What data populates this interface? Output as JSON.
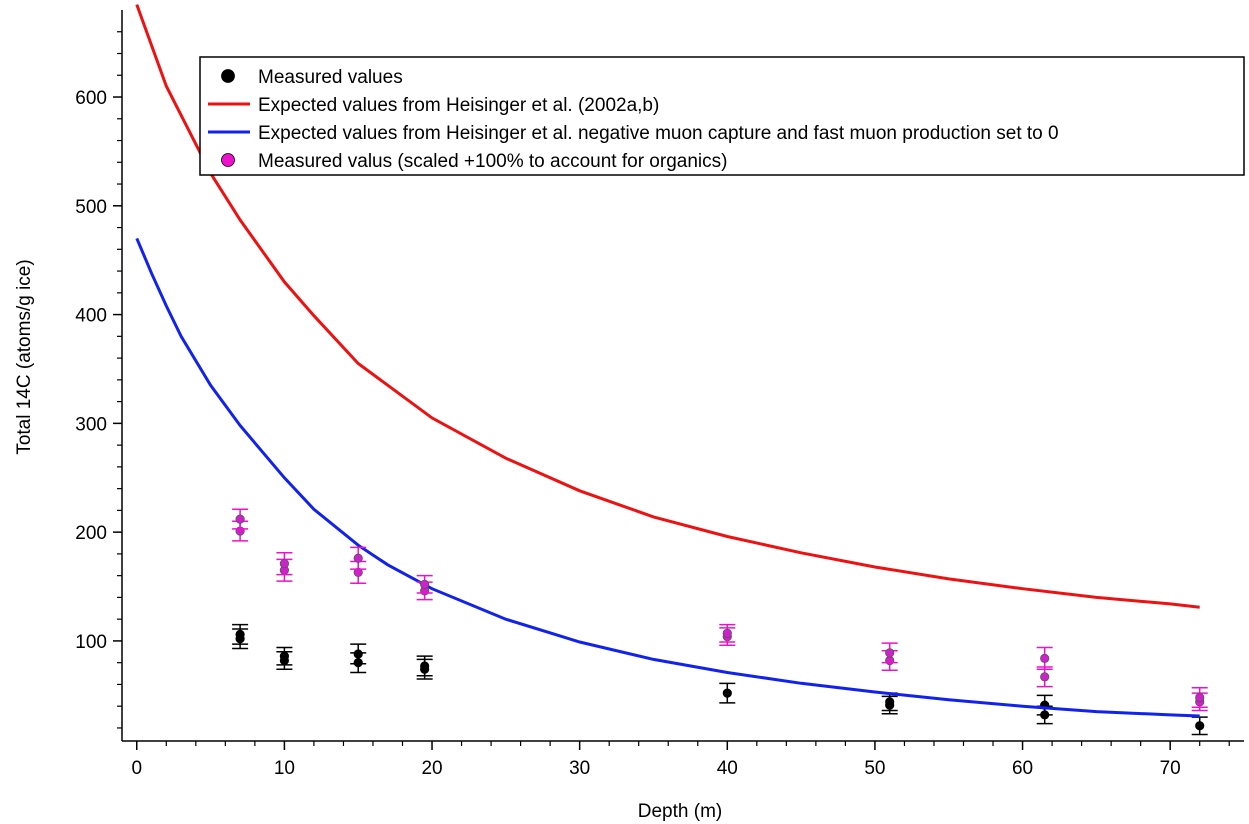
{
  "chart_data": {
    "type": "scatter",
    "xlabel": "Depth (m)",
    "ylabel": "Total 14C (atoms/g ice)",
    "xlim": [
      -1,
      75
    ],
    "ylim": [
      8,
      680
    ],
    "x_ticks": [
      0,
      10,
      20,
      30,
      40,
      50,
      60,
      70
    ],
    "y_ticks": [
      100,
      200,
      300,
      400,
      500,
      600
    ],
    "grid": false,
    "legend_position": "top-right",
    "colors": {
      "measured": "#000000",
      "heisinger": "#ee1111",
      "heisinger_zero": "#1122ee",
      "scaled": "#ee11cc"
    },
    "series": [
      {
        "key": "measured",
        "kind": "points",
        "name": "Measured values",
        "points": [
          {
            "x": 7,
            "y": 102,
            "err": 9
          },
          {
            "x": 7,
            "y": 106,
            "err": 9
          },
          {
            "x": 10,
            "y": 82,
            "err": 8
          },
          {
            "x": 10,
            "y": 86,
            "err": 8
          },
          {
            "x": 15,
            "y": 80,
            "err": 9
          },
          {
            "x": 15,
            "y": 88,
            "err": 9
          },
          {
            "x": 19.5,
            "y": 74,
            "err": 9
          },
          {
            "x": 19.5,
            "y": 77,
            "err": 9
          },
          {
            "x": 40,
            "y": 52,
            "err": 9
          },
          {
            "x": 51,
            "y": 41,
            "err": 8
          },
          {
            "x": 51,
            "y": 44,
            "err": 8
          },
          {
            "x": 61.5,
            "y": 32,
            "err": 8
          },
          {
            "x": 61.5,
            "y": 41,
            "err": 9
          },
          {
            "x": 72,
            "y": 22,
            "err": 8
          }
        ]
      },
      {
        "key": "heisinger",
        "kind": "curve",
        "name": "Expected values from Heisinger et al. (2002a,b)",
        "points": [
          {
            "x": 0,
            "y": 685
          },
          {
            "x": 2,
            "y": 610
          },
          {
            "x": 5,
            "y": 530
          },
          {
            "x": 7,
            "y": 487
          },
          {
            "x": 10,
            "y": 430
          },
          {
            "x": 12,
            "y": 399
          },
          {
            "x": 15,
            "y": 355
          },
          {
            "x": 20,
            "y": 305
          },
          {
            "x": 25,
            "y": 268
          },
          {
            "x": 30,
            "y": 238
          },
          {
            "x": 35,
            "y": 214
          },
          {
            "x": 40,
            "y": 196
          },
          {
            "x": 45,
            "y": 181
          },
          {
            "x": 50,
            "y": 168
          },
          {
            "x": 55,
            "y": 157
          },
          {
            "x": 60,
            "y": 148
          },
          {
            "x": 65,
            "y": 140
          },
          {
            "x": 70,
            "y": 134
          },
          {
            "x": 72,
            "y": 131
          }
        ]
      },
      {
        "key": "heisinger_zero",
        "kind": "curve",
        "name": "Expected values from Heisinger et al. negative muon capture and fast muon production set to 0",
        "points": [
          {
            "x": 0,
            "y": 470
          },
          {
            "x": 1,
            "y": 438
          },
          {
            "x": 2,
            "y": 408
          },
          {
            "x": 3,
            "y": 380
          },
          {
            "x": 5,
            "y": 335
          },
          {
            "x": 7,
            "y": 298
          },
          {
            "x": 10,
            "y": 250
          },
          {
            "x": 12,
            "y": 221
          },
          {
            "x": 15,
            "y": 188
          },
          {
            "x": 17,
            "y": 170
          },
          {
            "x": 20,
            "y": 148
          },
          {
            "x": 25,
            "y": 120
          },
          {
            "x": 30,
            "y": 99
          },
          {
            "x": 35,
            "y": 83
          },
          {
            "x": 40,
            "y": 71
          },
          {
            "x": 45,
            "y": 61
          },
          {
            "x": 50,
            "y": 53
          },
          {
            "x": 55,
            "y": 46
          },
          {
            "x": 60,
            "y": 40
          },
          {
            "x": 65,
            "y": 35
          },
          {
            "x": 70,
            "y": 32
          },
          {
            "x": 72,
            "y": 31
          }
        ]
      },
      {
        "key": "scaled",
        "kind": "points",
        "name": "Measured valus (scaled +100% to account for organics)",
        "points": [
          {
            "x": 7,
            "y": 201,
            "err": 9
          },
          {
            "x": 7,
            "y": 212,
            "err": 9
          },
          {
            "x": 10,
            "y": 165,
            "err": 10
          },
          {
            "x": 10,
            "y": 171,
            "err": 10
          },
          {
            "x": 15,
            "y": 163,
            "err": 10
          },
          {
            "x": 15,
            "y": 176,
            "err": 10
          },
          {
            "x": 19.5,
            "y": 146,
            "err": 8
          },
          {
            "x": 19.5,
            "y": 152,
            "err": 8
          },
          {
            "x": 40,
            "y": 104,
            "err": 8
          },
          {
            "x": 40,
            "y": 107,
            "err": 8
          },
          {
            "x": 51,
            "y": 82,
            "err": 9
          },
          {
            "x": 51,
            "y": 89,
            "err": 9
          },
          {
            "x": 61.5,
            "y": 67,
            "err": 9
          },
          {
            "x": 61.5,
            "y": 84,
            "err": 10
          },
          {
            "x": 72,
            "y": 44,
            "err": 8
          },
          {
            "x": 72,
            "y": 48,
            "err": 9
          }
        ]
      }
    ]
  }
}
